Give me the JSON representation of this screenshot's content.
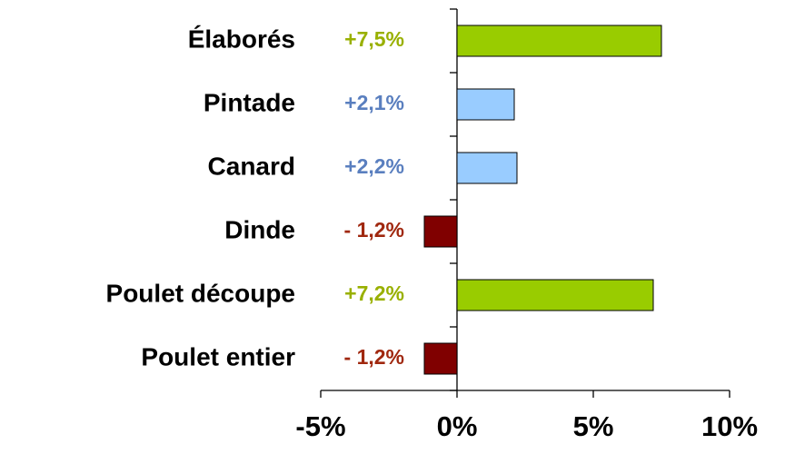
{
  "chart_data": {
    "type": "barh",
    "categories": [
      "Élaborés",
      "Pintade",
      "Canard",
      "Dinde",
      "Poulet découpe",
      "Poulet entier"
    ],
    "values": [
      7.5,
      2.1,
      2.2,
      -1.2,
      7.2,
      -1.2
    ],
    "value_labels": [
      "+7,5%",
      "+2,1%",
      "+2,2%",
      "- 1,2%",
      "+7,2%",
      "- 1,2%"
    ],
    "colors": [
      "#99cc00",
      "#99ccff",
      "#99ccff",
      "#800000",
      "#99cc00",
      "#800000"
    ],
    "value_label_colors": [
      "#99b000",
      "#5a7fbf",
      "#5a7fbf",
      "#a0280f",
      "#99b000",
      "#a0280f"
    ],
    "xlim": [
      -5,
      10
    ],
    "xticks": [
      {
        "value": -5,
        "label": "-5%"
      },
      {
        "value": 0,
        "label": "0%"
      },
      {
        "value": 5,
        "label": "5%"
      },
      {
        "value": 10,
        "label": "10%"
      }
    ]
  }
}
